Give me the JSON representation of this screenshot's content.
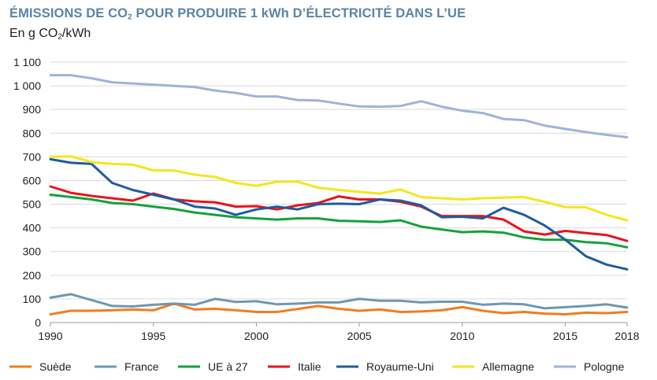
{
  "chart_data": {
    "type": "line",
    "title": {
      "pre": "ÉMISSIONS DE CO",
      "sub": "2",
      "post": " POUR PRODUIRE 1 kWh D’ÉLECTRICITÉ DANS L’UE"
    },
    "subtitle": {
      "pre": "En g CO",
      "sub": "2",
      "post": "/kWh"
    },
    "xlim": [
      1990,
      2018
    ],
    "ylim": [
      0,
      1100
    ],
    "xticks": [
      1990,
      1995,
      2000,
      2005,
      2010,
      2015,
      2018
    ],
    "yticks": [
      0,
      100,
      200,
      300,
      400,
      500,
      600,
      700,
      800,
      900,
      1000,
      1100
    ],
    "ytick_labels": [
      "0",
      "100",
      "200",
      "300",
      "400",
      "500",
      "600",
      "700",
      "800",
      "900",
      "1 000",
      "1 100"
    ],
    "grid": "horizontal",
    "legend_position": "bottom",
    "x": [
      1990,
      1991,
      1992,
      1993,
      1994,
      1995,
      1996,
      1997,
      1998,
      1999,
      2000,
      2001,
      2002,
      2003,
      2004,
      2005,
      2006,
      2007,
      2008,
      2009,
      2010,
      2011,
      2012,
      2013,
      2014,
      2015,
      2016,
      2017,
      2018
    ],
    "series": [
      {
        "name": "Suède",
        "color": "#ef7d22",
        "values": [
          35,
          50,
          50,
          52,
          55,
          52,
          80,
          55,
          58,
          52,
          45,
          45,
          57,
          70,
          58,
          50,
          55,
          45,
          47,
          52,
          65,
          50,
          40,
          45,
          38,
          35,
          42,
          40,
          45
        ]
      },
      {
        "name": "France",
        "color": "#6f97b1",
        "values": [
          105,
          120,
          95,
          70,
          68,
          75,
          80,
          75,
          100,
          87,
          90,
          77,
          80,
          85,
          85,
          100,
          92,
          92,
          85,
          88,
          88,
          75,
          80,
          77,
          60,
          65,
          70,
          77,
          63
        ]
      },
      {
        "name": "UE à 27",
        "color": "#16a03b",
        "values": [
          540,
          530,
          520,
          505,
          500,
          490,
          480,
          465,
          455,
          445,
          440,
          435,
          440,
          440,
          430,
          428,
          425,
          432,
          405,
          393,
          382,
          385,
          380,
          360,
          350,
          350,
          340,
          335,
          318
        ]
      },
      {
        "name": "Italie",
        "color": "#e8141b",
        "values": [
          575,
          548,
          535,
          525,
          515,
          545,
          520,
          512,
          508,
          490,
          492,
          478,
          495,
          505,
          533,
          520,
          520,
          510,
          490,
          450,
          450,
          450,
          435,
          385,
          372,
          387,
          378,
          370,
          345
        ]
      },
      {
        "name": "Royaume-Uni",
        "color": "#1f5b9f",
        "values": [
          690,
          675,
          670,
          590,
          560,
          540,
          520,
          490,
          482,
          455,
          478,
          490,
          478,
          500,
          502,
          500,
          520,
          515,
          495,
          445,
          447,
          440,
          485,
          455,
          410,
          350,
          280,
          245,
          225
        ]
      },
      {
        "name": "Allemagne",
        "color": "#f4e61c",
        "values": [
          700,
          702,
          678,
          670,
          667,
          643,
          642,
          625,
          615,
          590,
          578,
          595,
          595,
          570,
          560,
          552,
          545,
          562,
          530,
          525,
          520,
          525,
          528,
          530,
          510,
          488,
          487,
          455,
          432
        ]
      },
      {
        "name": "Pologne",
        "color": "#9eb3d9",
        "values": [
          1045,
          1045,
          1032,
          1015,
          1010,
          1005,
          1000,
          995,
          980,
          970,
          955,
          955,
          940,
          938,
          925,
          913,
          912,
          915,
          935,
          912,
          895,
          885,
          860,
          855,
          832,
          818,
          805,
          793,
          783
        ]
      }
    ]
  }
}
